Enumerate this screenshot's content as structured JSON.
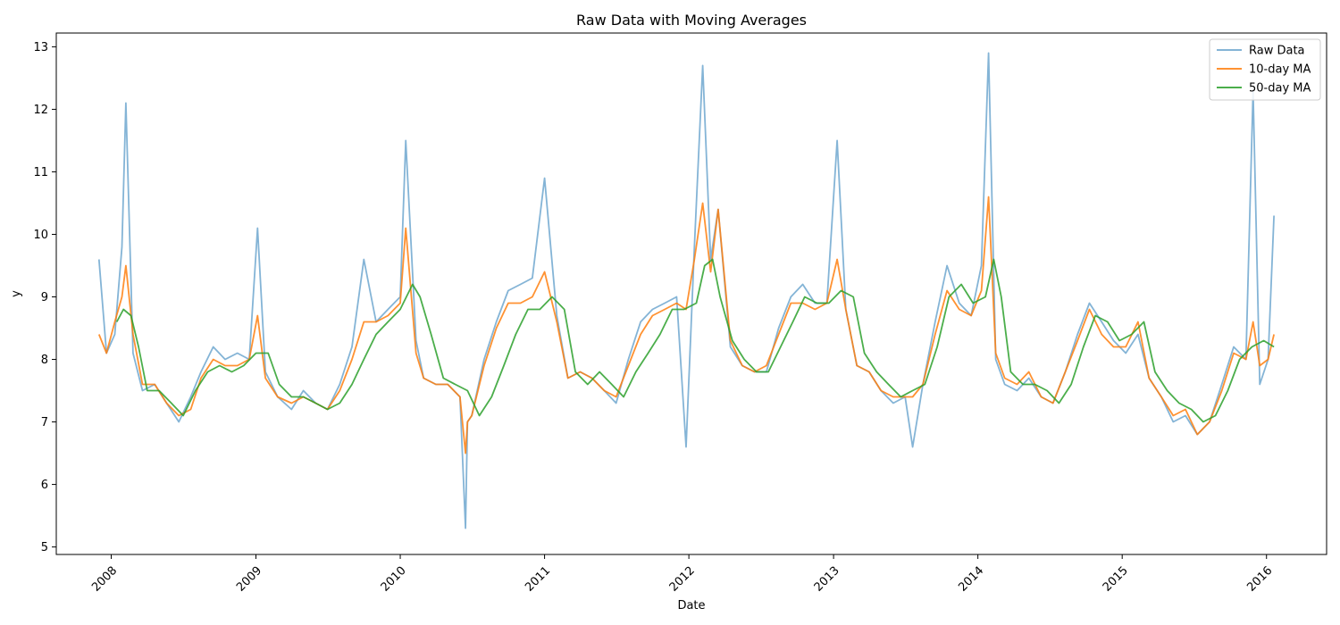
{
  "chart_data": {
    "type": "line",
    "title": "Raw Data with Moving Averages",
    "xlabel": "Date",
    "ylabel": "y",
    "xlim": [
      "2007-08-15",
      "2016-06-01"
    ],
    "ylim": [
      4.88,
      13.22
    ],
    "x_ticks": [
      "2008",
      "2009",
      "2010",
      "2011",
      "2012",
      "2013",
      "2014",
      "2015",
      "2016"
    ],
    "y_ticks": [
      5,
      6,
      7,
      8,
      9,
      10,
      11,
      12,
      13
    ],
    "grid": false,
    "legend_position": "top-right",
    "series": [
      {
        "name": "Raw Data",
        "color": "#1f77b4",
        "x": [
          "2007-12-01",
          "2007-12-20",
          "2008-01-10",
          "2008-01-28",
          "2008-02-07",
          "2008-02-25",
          "2008-03-20",
          "2008-04-20",
          "2008-05-20",
          "2008-06-20",
          "2008-07-20",
          "2008-08-15",
          "2008-09-15",
          "2008-10-15",
          "2008-11-15",
          "2008-12-15",
          "2009-01-05",
          "2009-01-25",
          "2009-02-25",
          "2009-04-01",
          "2009-05-01",
          "2009-06-01",
          "2009-07-01",
          "2009-08-01",
          "2009-09-01",
          "2009-10-01",
          "2009-11-01",
          "2009-12-01",
          "2010-01-01",
          "2010-01-15",
          "2010-02-10",
          "2010-03-01",
          "2010-04-01",
          "2010-05-01",
          "2010-06-01",
          "2010-06-15",
          "2010-06-20",
          "2010-07-01",
          "2010-08-01",
          "2010-09-01",
          "2010-10-01",
          "2010-11-01",
          "2010-12-01",
          "2011-01-01",
          "2011-02-01",
          "2011-03-01",
          "2011-04-01",
          "2011-05-01",
          "2011-06-01",
          "2011-07-01",
          "2011-08-01",
          "2011-09-01",
          "2011-10-01",
          "2011-11-01",
          "2011-12-01",
          "2011-12-25",
          "2012-01-15",
          "2012-02-05",
          "2012-02-25",
          "2012-03-15",
          "2012-04-15",
          "2012-05-15",
          "2012-06-15",
          "2012-07-15",
          "2012-08-15",
          "2012-09-15",
          "2012-10-15",
          "2012-11-15",
          "2012-12-15",
          "2013-01-10",
          "2013-02-01",
          "2013-03-01",
          "2013-04-01",
          "2013-05-01",
          "2013-06-01",
          "2013-07-01",
          "2013-07-20",
          "2013-08-15",
          "2013-09-15",
          "2013-10-15",
          "2013-11-15",
          "2013-12-15",
          "2014-01-10",
          "2014-01-28",
          "2014-02-15",
          "2014-03-10",
          "2014-04-10",
          "2014-05-10",
          "2014-06-10",
          "2014-07-10",
          "2014-08-10",
          "2014-09-10",
          "2014-10-10",
          "2014-11-10",
          "2014-12-10",
          "2015-01-10",
          "2015-02-10",
          "2015-03-10",
          "2015-04-10",
          "2015-05-10",
          "2015-06-10",
          "2015-07-10",
          "2015-08-10",
          "2015-09-10",
          "2015-10-10",
          "2015-11-10",
          "2015-11-28",
          "2015-12-15",
          "2016-01-05",
          "2016-01-20"
        ],
        "values": [
          9.6,
          8.1,
          8.4,
          9.8,
          12.1,
          8.1,
          7.5,
          7.6,
          7.3,
          7.0,
          7.4,
          7.8,
          8.2,
          8.0,
          8.1,
          8.0,
          10.1,
          7.8,
          7.4,
          7.2,
          7.5,
          7.3,
          7.2,
          7.6,
          8.2,
          9.6,
          8.6,
          8.8,
          9.0,
          11.5,
          8.3,
          7.7,
          7.6,
          7.6,
          7.4,
          5.3,
          7.0,
          7.1,
          8.0,
          8.6,
          9.1,
          9.2,
          9.3,
          10.9,
          8.7,
          7.7,
          7.8,
          7.7,
          7.5,
          7.3,
          8.0,
          8.6,
          8.8,
          8.9,
          9.0,
          6.6,
          9.8,
          12.7,
          9.6,
          10.4,
          8.2,
          7.9,
          7.8,
          7.8,
          8.5,
          9.0,
          9.2,
          8.9,
          8.9,
          11.5,
          8.8,
          7.9,
          7.8,
          7.5,
          7.3,
          7.4,
          6.6,
          7.6,
          8.6,
          9.5,
          8.9,
          8.7,
          9.5,
          12.9,
          8.0,
          7.6,
          7.5,
          7.7,
          7.4,
          7.3,
          7.8,
          8.4,
          8.9,
          8.6,
          8.3,
          8.1,
          8.4,
          7.7,
          7.4,
          7.0,
          7.1,
          6.8,
          7.0,
          7.6,
          8.2,
          8.0,
          12.3,
          7.6,
          8.0,
          10.3
        ]
      },
      {
        "name": "10-day MA",
        "color": "#ff7f0e",
        "x": [
          "2007-12-01",
          "2007-12-20",
          "2008-01-10",
          "2008-01-28",
          "2008-02-07",
          "2008-02-25",
          "2008-03-20",
          "2008-04-20",
          "2008-05-20",
          "2008-06-20",
          "2008-07-20",
          "2008-08-15",
          "2008-09-15",
          "2008-10-15",
          "2008-11-15",
          "2008-12-15",
          "2009-01-05",
          "2009-01-25",
          "2009-02-25",
          "2009-04-01",
          "2009-05-01",
          "2009-06-01",
          "2009-07-01",
          "2009-08-01",
          "2009-09-01",
          "2009-10-01",
          "2009-11-01",
          "2009-12-01",
          "2010-01-01",
          "2010-01-15",
          "2010-02-10",
          "2010-03-01",
          "2010-04-01",
          "2010-05-01",
          "2010-06-01",
          "2010-06-15",
          "2010-06-20",
          "2010-07-01",
          "2010-08-01",
          "2010-09-01",
          "2010-10-01",
          "2010-11-01",
          "2010-12-01",
          "2011-01-01",
          "2011-02-01",
          "2011-03-01",
          "2011-04-01",
          "2011-05-01",
          "2011-06-01",
          "2011-07-01",
          "2011-08-01",
          "2011-09-01",
          "2011-10-01",
          "2011-11-01",
          "2011-12-01",
          "2011-12-25",
          "2012-01-15",
          "2012-02-05",
          "2012-02-25",
          "2012-03-15",
          "2012-04-15",
          "2012-05-15",
          "2012-06-15",
          "2012-07-15",
          "2012-08-15",
          "2012-09-15",
          "2012-10-15",
          "2012-11-15",
          "2012-12-15",
          "2013-01-10",
          "2013-02-01",
          "2013-03-01",
          "2013-04-01",
          "2013-05-01",
          "2013-06-01",
          "2013-07-01",
          "2013-07-20",
          "2013-08-15",
          "2013-09-15",
          "2013-10-15",
          "2013-11-15",
          "2013-12-15",
          "2014-01-10",
          "2014-01-28",
          "2014-02-15",
          "2014-03-10",
          "2014-04-10",
          "2014-05-10",
          "2014-06-10",
          "2014-07-10",
          "2014-08-10",
          "2014-09-10",
          "2014-10-10",
          "2014-11-10",
          "2014-12-10",
          "2015-01-10",
          "2015-02-10",
          "2015-03-10",
          "2015-04-10",
          "2015-05-10",
          "2015-06-10",
          "2015-07-10",
          "2015-08-10",
          "2015-09-10",
          "2015-10-10",
          "2015-11-10",
          "2015-11-28",
          "2015-12-15",
          "2016-01-05",
          "2016-01-20"
        ],
        "values": [
          8.4,
          8.1,
          8.6,
          9.0,
          9.5,
          8.4,
          7.6,
          7.6,
          7.3,
          7.1,
          7.2,
          7.7,
          8.0,
          7.9,
          7.9,
          8.0,
          8.7,
          7.7,
          7.4,
          7.3,
          7.4,
          7.3,
          7.2,
          7.5,
          8.0,
          8.6,
          8.6,
          8.7,
          8.9,
          10.1,
          8.1,
          7.7,
          7.6,
          7.6,
          7.4,
          6.5,
          7.0,
          7.1,
          7.9,
          8.5,
          8.9,
          8.9,
          9.0,
          9.4,
          8.6,
          7.7,
          7.8,
          7.7,
          7.5,
          7.4,
          7.9,
          8.4,
          8.7,
          8.8,
          8.9,
          8.8,
          9.6,
          10.5,
          9.4,
          10.4,
          8.3,
          7.9,
          7.8,
          7.9,
          8.4,
          8.9,
          8.9,
          8.8,
          8.9,
          9.6,
          8.8,
          7.9,
          7.8,
          7.5,
          7.4,
          7.4,
          7.4,
          7.6,
          8.4,
          9.1,
          8.8,
          8.7,
          9.1,
          10.6,
          8.1,
          7.7,
          7.6,
          7.8,
          7.4,
          7.3,
          7.8,
          8.3,
          8.8,
          8.4,
          8.2,
          8.2,
          8.6,
          7.7,
          7.4,
          7.1,
          7.2,
          6.8,
          7.0,
          7.5,
          8.1,
          8.0,
          8.6,
          7.9,
          8.0,
          8.4
        ]
      },
      {
        "name": "50-day MA",
        "color": "#2ca02c",
        "x": [
          "2008-01-15",
          "2008-02-01",
          "2008-02-20",
          "2008-03-10",
          "2008-04-01",
          "2008-05-01",
          "2008-06-01",
          "2008-07-01",
          "2008-08-01",
          "2008-09-01",
          "2008-10-01",
          "2008-11-01",
          "2008-12-01",
          "2009-01-01",
          "2009-02-01",
          "2009-03-01",
          "2009-04-01",
          "2009-05-01",
          "2009-06-01",
          "2009-07-01",
          "2009-08-01",
          "2009-09-01",
          "2009-10-01",
          "2009-11-01",
          "2009-12-01",
          "2010-01-01",
          "2010-02-01",
          "2010-02-20",
          "2010-03-20",
          "2010-04-20",
          "2010-05-20",
          "2010-06-20",
          "2010-07-20",
          "2010-08-20",
          "2010-09-20",
          "2010-10-20",
          "2010-11-20",
          "2010-12-20",
          "2011-01-20",
          "2011-02-20",
          "2011-03-20",
          "2011-04-20",
          "2011-05-20",
          "2011-06-20",
          "2011-07-20",
          "2011-08-20",
          "2011-09-20",
          "2011-10-20",
          "2011-11-20",
          "2011-12-20",
          "2012-01-20",
          "2012-02-10",
          "2012-03-01",
          "2012-03-20",
          "2012-04-20",
          "2012-05-20",
          "2012-06-20",
          "2012-07-20",
          "2012-08-20",
          "2012-09-20",
          "2012-10-20",
          "2012-11-20",
          "2012-12-20",
          "2013-01-20",
          "2013-02-20",
          "2013-03-20",
          "2013-04-20",
          "2013-05-20",
          "2013-06-20",
          "2013-07-20",
          "2013-08-20",
          "2013-09-20",
          "2013-10-20",
          "2013-11-20",
          "2013-12-20",
          "2014-01-20",
          "2014-02-10",
          "2014-03-01",
          "2014-03-25",
          "2014-04-25",
          "2014-05-25",
          "2014-06-25",
          "2014-07-25",
          "2014-08-25",
          "2014-09-25",
          "2014-10-25",
          "2014-11-25",
          "2014-12-25",
          "2015-01-25",
          "2015-02-25",
          "2015-03-25",
          "2015-04-25",
          "2015-05-25",
          "2015-06-25",
          "2015-07-25",
          "2015-08-25",
          "2015-09-25",
          "2015-10-25",
          "2015-11-25",
          "2015-12-25",
          "2016-01-20"
        ],
        "values": [
          8.6,
          8.8,
          8.7,
          8.2,
          7.5,
          7.5,
          7.3,
          7.1,
          7.5,
          7.8,
          7.9,
          7.8,
          7.9,
          8.1,
          8.1,
          7.6,
          7.4,
          7.4,
          7.3,
          7.2,
          7.3,
          7.6,
          8.0,
          8.4,
          8.6,
          8.8,
          9.2,
          9.0,
          8.4,
          7.7,
          7.6,
          7.5,
          7.1,
          7.4,
          7.9,
          8.4,
          8.8,
          8.8,
          9.0,
          8.8,
          7.8,
          7.6,
          7.8,
          7.6,
          7.4,
          7.8,
          8.1,
          8.4,
          8.8,
          8.8,
          8.9,
          9.5,
          9.6,
          9.0,
          8.3,
          8.0,
          7.8,
          7.8,
          8.2,
          8.6,
          9.0,
          8.9,
          8.9,
          9.1,
          9.0,
          8.1,
          7.8,
          7.6,
          7.4,
          7.5,
          7.6,
          8.2,
          9.0,
          9.2,
          8.9,
          9.0,
          9.6,
          9.0,
          7.8,
          7.6,
          7.6,
          7.5,
          7.3,
          7.6,
          8.2,
          8.7,
          8.6,
          8.3,
          8.4,
          8.6,
          7.8,
          7.5,
          7.3,
          7.2,
          7.0,
          7.1,
          7.5,
          8.0,
          8.2,
          8.3,
          8.2
        ]
      }
    ]
  }
}
